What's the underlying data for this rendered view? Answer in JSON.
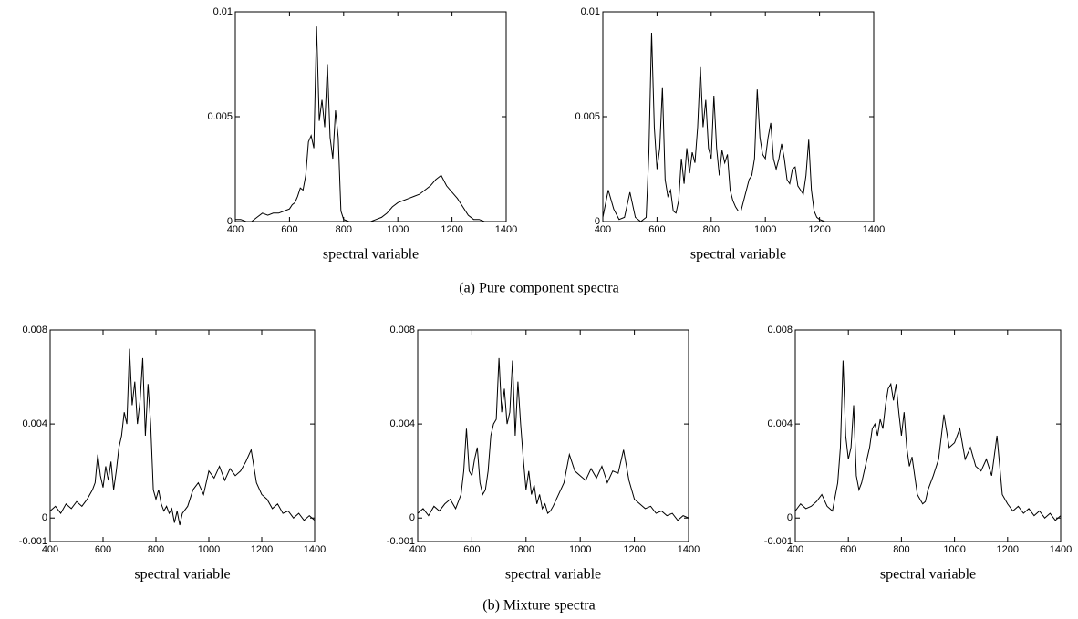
{
  "chart_data": [
    {
      "type": "line",
      "xlabel": "spectral variable",
      "xlim": [
        400,
        1400
      ],
      "ylim": [
        0,
        0.01
      ],
      "xticks": [
        400,
        600,
        800,
        1000,
        1200,
        1400
      ],
      "yticks": [
        0,
        0.005,
        0.01
      ],
      "x": [
        400,
        420,
        440,
        460,
        480,
        500,
        520,
        540,
        560,
        580,
        600,
        610,
        620,
        630,
        640,
        650,
        660,
        670,
        680,
        690,
        700,
        710,
        720,
        730,
        740,
        750,
        760,
        770,
        780,
        790,
        800,
        820,
        840,
        860,
        880,
        900,
        920,
        940,
        960,
        980,
        1000,
        1020,
        1040,
        1060,
        1080,
        1100,
        1120,
        1140,
        1160,
        1180,
        1200,
        1220,
        1240,
        1260,
        1280,
        1300,
        1320,
        1340,
        1360,
        1380,
        1400
      ],
      "series": [
        {
          "color": "#000000",
          "values": [
            0.0001,
            0.0001,
            0,
            0,
            0.0002,
            0.0004,
            0.0003,
            0.0004,
            0.0004,
            0.0005,
            0.0006,
            0.0008,
            0.0009,
            0.0012,
            0.0016,
            0.0015,
            0.0022,
            0.0038,
            0.0041,
            0.0035,
            0.0093,
            0.0048,
            0.0058,
            0.0045,
            0.0075,
            0.004,
            0.003,
            0.0053,
            0.004,
            0.0005,
            0.0001,
            0,
            0,
            0,
            0,
            0,
            0.0001,
            0.0002,
            0.0004,
            0.0007,
            0.0009,
            0.001,
            0.0011,
            0.0012,
            0.0013,
            0.0015,
            0.0017,
            0.002,
            0.0022,
            0.0017,
            0.0014,
            0.0011,
            0.0007,
            0.0003,
            0.0001,
            0.0001,
            0,
            0,
            0,
            0,
            0
          ]
        }
      ]
    },
    {
      "type": "line",
      "xlabel": "spectral variable",
      "xlim": [
        400,
        1400
      ],
      "ylim": [
        0,
        0.01
      ],
      "xticks": [
        400,
        600,
        800,
        1000,
        1200,
        1400
      ],
      "yticks": [
        0,
        0.005,
        0.01
      ],
      "x": [
        400,
        420,
        440,
        460,
        480,
        500,
        520,
        540,
        560,
        570,
        580,
        590,
        600,
        610,
        620,
        630,
        640,
        650,
        660,
        670,
        680,
        690,
        700,
        710,
        720,
        730,
        740,
        750,
        760,
        770,
        780,
        790,
        800,
        810,
        820,
        830,
        840,
        850,
        860,
        870,
        880,
        890,
        900,
        910,
        920,
        930,
        940,
        950,
        960,
        970,
        980,
        990,
        1000,
        1010,
        1020,
        1030,
        1040,
        1050,
        1060,
        1070,
        1080,
        1090,
        1100,
        1110,
        1120,
        1130,
        1140,
        1150,
        1160,
        1170,
        1180,
        1190,
        1200,
        1220,
        1240,
        1260,
        1280,
        1300,
        1320,
        1340,
        1360,
        1380,
        1400
      ],
      "series": [
        {
          "color": "#000000",
          "values": [
            0.0002,
            0.0015,
            0.0006,
            0.0001,
            0.0002,
            0.0014,
            0.0002,
            0,
            0.0002,
            0.0033,
            0.009,
            0.0045,
            0.0025,
            0.0035,
            0.0064,
            0.002,
            0.0012,
            0.0015,
            0.0005,
            0.0004,
            0.001,
            0.003,
            0.0018,
            0.0035,
            0.0023,
            0.0033,
            0.0028,
            0.0045,
            0.0074,
            0.0045,
            0.0058,
            0.0035,
            0.003,
            0.006,
            0.0035,
            0.0022,
            0.0034,
            0.0028,
            0.0032,
            0.0015,
            0.001,
            0.0007,
            0.0005,
            0.0005,
            0.001,
            0.0015,
            0.002,
            0.0022,
            0.003,
            0.0063,
            0.004,
            0.0032,
            0.003,
            0.004,
            0.0047,
            0.003,
            0.0025,
            0.003,
            0.0037,
            0.003,
            0.002,
            0.0018,
            0.0025,
            0.0026,
            0.0017,
            0.0015,
            0.0013,
            0.0022,
            0.0039,
            0.0015,
            0.0005,
            0.0002,
            0.0001,
            0,
            0,
            0,
            0,
            0,
            0,
            0,
            0,
            0,
            0
          ]
        }
      ]
    },
    {
      "type": "line",
      "xlabel": "spectral variable",
      "xlim": [
        400,
        1400
      ],
      "ylim": [
        -0.001,
        0.008
      ],
      "xticks": [
        400,
        600,
        800,
        1000,
        1200,
        1400
      ],
      "yticks": [
        -0.001,
        0,
        0.004,
        0.008
      ],
      "x": [
        400,
        420,
        440,
        460,
        480,
        500,
        520,
        540,
        560,
        570,
        580,
        590,
        600,
        610,
        620,
        630,
        640,
        650,
        660,
        670,
        680,
        690,
        700,
        710,
        720,
        730,
        740,
        750,
        760,
        770,
        780,
        790,
        800,
        810,
        820,
        830,
        840,
        850,
        860,
        870,
        880,
        890,
        900,
        920,
        940,
        960,
        980,
        1000,
        1020,
        1040,
        1060,
        1080,
        1100,
        1120,
        1140,
        1160,
        1180,
        1200,
        1220,
        1240,
        1260,
        1280,
        1300,
        1320,
        1340,
        1360,
        1380,
        1400
      ],
      "series": [
        {
          "color": "#000000",
          "values": [
            0.0003,
            0.0005,
            0.0002,
            0.0006,
            0.0004,
            0.0007,
            0.0005,
            0.0008,
            0.0012,
            0.0015,
            0.0027,
            0.0018,
            0.0013,
            0.0022,
            0.0016,
            0.0024,
            0.0012,
            0.002,
            0.003,
            0.0035,
            0.0045,
            0.004,
            0.0072,
            0.0048,
            0.0058,
            0.004,
            0.005,
            0.0068,
            0.0035,
            0.0057,
            0.004,
            0.0012,
            0.0008,
            0.0012,
            0.0006,
            0.0003,
            0.0005,
            0.0002,
            0.0004,
            -0.0002,
            0.0003,
            -0.0003,
            0.0002,
            0.0005,
            0.0012,
            0.0015,
            0.001,
            0.002,
            0.0017,
            0.0022,
            0.0016,
            0.0021,
            0.0018,
            0.002,
            0.0024,
            0.0029,
            0.0015,
            0.001,
            0.0008,
            0.0004,
            0.0006,
            0.0002,
            0.0003,
            0,
            0.0002,
            -0.0001,
            0.0001,
            -0.0001
          ]
        }
      ]
    },
    {
      "type": "line",
      "xlabel": "spectral variable",
      "xlim": [
        400,
        1400
      ],
      "ylim": [
        -0.001,
        0.008
      ],
      "xticks": [
        400,
        600,
        800,
        1000,
        1200,
        1400
      ],
      "yticks": [
        -0.001,
        0,
        0.004,
        0.008
      ],
      "x": [
        400,
        420,
        440,
        460,
        480,
        500,
        520,
        540,
        560,
        570,
        580,
        590,
        600,
        610,
        620,
        630,
        640,
        650,
        660,
        670,
        680,
        690,
        700,
        710,
        720,
        730,
        740,
        750,
        760,
        770,
        780,
        790,
        800,
        810,
        820,
        830,
        840,
        850,
        860,
        870,
        880,
        890,
        900,
        920,
        940,
        960,
        980,
        1000,
        1020,
        1040,
        1060,
        1080,
        1100,
        1120,
        1140,
        1160,
        1180,
        1200,
        1220,
        1240,
        1260,
        1280,
        1300,
        1320,
        1340,
        1360,
        1380,
        1400
      ],
      "series": [
        {
          "color": "#000000",
          "values": [
            0.0002,
            0.0004,
            0.0001,
            0.0005,
            0.0003,
            0.0006,
            0.0008,
            0.0004,
            0.001,
            0.002,
            0.0038,
            0.002,
            0.0018,
            0.0025,
            0.003,
            0.0015,
            0.001,
            0.0012,
            0.002,
            0.0035,
            0.004,
            0.0042,
            0.0068,
            0.0045,
            0.0055,
            0.004,
            0.0045,
            0.0067,
            0.0035,
            0.0058,
            0.004,
            0.0025,
            0.0012,
            0.002,
            0.001,
            0.0014,
            0.0006,
            0.001,
            0.0004,
            0.0006,
            0.0002,
            0.0003,
            0.0005,
            0.001,
            0.0015,
            0.0027,
            0.002,
            0.0018,
            0.0016,
            0.0021,
            0.0017,
            0.0022,
            0.0015,
            0.002,
            0.0019,
            0.0029,
            0.0016,
            0.0008,
            0.0006,
            0.0004,
            0.0005,
            0.0002,
            0.0003,
            0.0001,
            0.0002,
            -0.0001,
            0.0001,
            0
          ]
        }
      ]
    },
    {
      "type": "line",
      "xlabel": "spectral variable",
      "xlim": [
        400,
        1400
      ],
      "ylim": [
        -0.001,
        0.008
      ],
      "xticks": [
        400,
        600,
        800,
        1000,
        1200,
        1400
      ],
      "yticks": [
        -0.001,
        0,
        0.004,
        0.008
      ],
      "x": [
        400,
        420,
        440,
        460,
        480,
        500,
        520,
        540,
        560,
        570,
        580,
        590,
        600,
        610,
        620,
        630,
        640,
        650,
        660,
        670,
        680,
        690,
        700,
        710,
        720,
        730,
        740,
        750,
        760,
        770,
        780,
        790,
        800,
        810,
        820,
        830,
        840,
        850,
        860,
        870,
        880,
        890,
        900,
        920,
        940,
        960,
        980,
        1000,
        1020,
        1040,
        1060,
        1080,
        1100,
        1120,
        1140,
        1160,
        1180,
        1200,
        1220,
        1240,
        1260,
        1280,
        1300,
        1320,
        1340,
        1360,
        1380,
        1400
      ],
      "series": [
        {
          "color": "#000000",
          "values": [
            0.0003,
            0.0006,
            0.0004,
            0.0005,
            0.0007,
            0.001,
            0.0005,
            0.0003,
            0.0015,
            0.003,
            0.0067,
            0.0035,
            0.0025,
            0.003,
            0.0048,
            0.0018,
            0.0012,
            0.0015,
            0.002,
            0.0025,
            0.003,
            0.0038,
            0.004,
            0.0035,
            0.0042,
            0.0038,
            0.0048,
            0.0055,
            0.0057,
            0.005,
            0.0057,
            0.0045,
            0.0035,
            0.0045,
            0.003,
            0.0022,
            0.0026,
            0.0018,
            0.001,
            0.0008,
            0.0006,
            0.0007,
            0.0012,
            0.0018,
            0.0025,
            0.0044,
            0.003,
            0.0032,
            0.0038,
            0.0025,
            0.003,
            0.0022,
            0.002,
            0.0025,
            0.0018,
            0.0035,
            0.001,
            0.0006,
            0.0003,
            0.0005,
            0.0002,
            0.0004,
            0.0001,
            0.0003,
            0,
            0.0002,
            -0.0001,
            0.0001
          ]
        }
      ]
    }
  ],
  "figure_captions": [
    "(a) Pure component spectra",
    "(b) Mixture spectra"
  ]
}
